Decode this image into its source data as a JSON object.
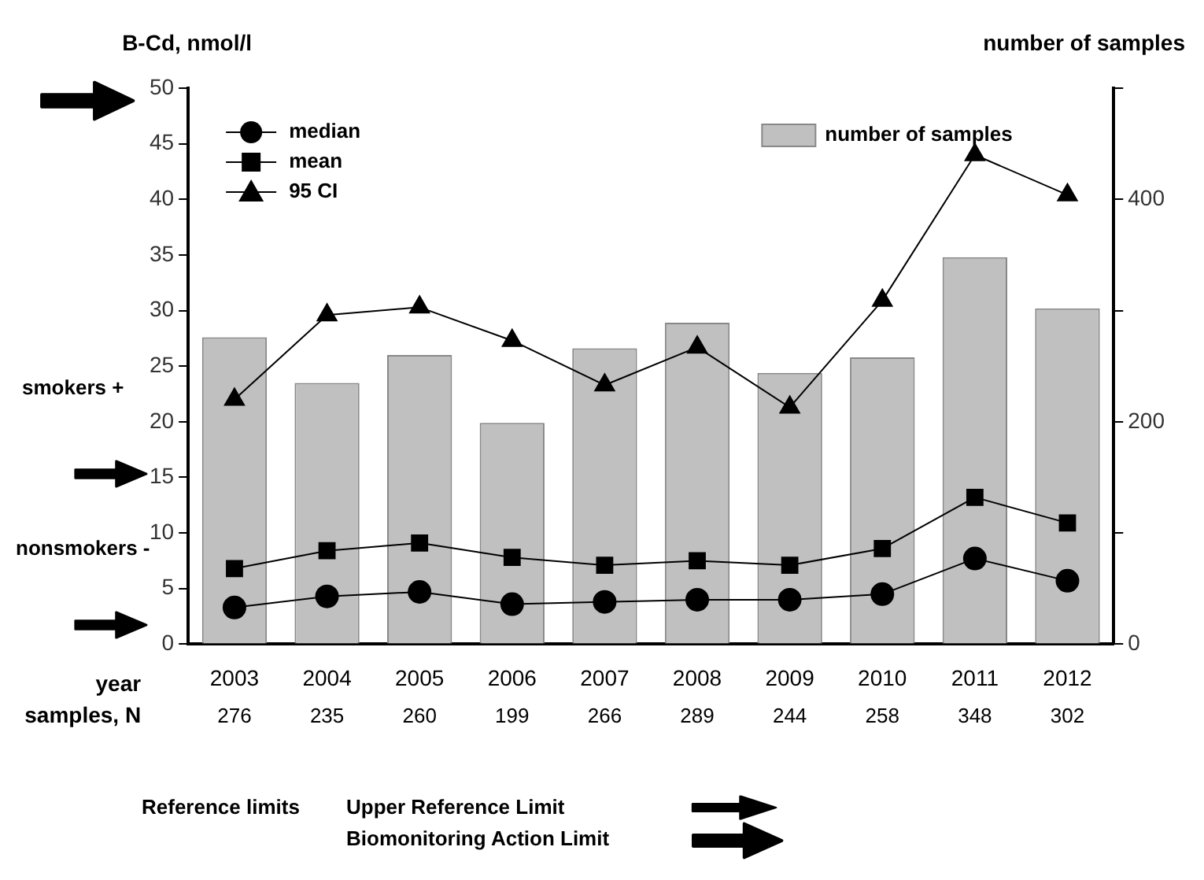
{
  "chart_data": {
    "type": "line",
    "ylabel": "B-Cd, nmol/l",
    "y2label": "number of samples",
    "xlabel": "year",
    "categories": [
      "2003",
      "2004",
      "2005",
      "2006",
      "2007",
      "2008",
      "2009",
      "2010",
      "2011",
      "2012"
    ],
    "series": [
      {
        "name": "number of samples",
        "type": "bar",
        "axis": "y2",
        "color": "#c0c0c0",
        "values": [
          276,
          235,
          260,
          199,
          266,
          289,
          244,
          258,
          348,
          302
        ],
        "data_labels": true
      },
      {
        "name": "median",
        "marker": "circle",
        "color": "#000000",
        "values": [
          3.3,
          4.3,
          4.7,
          3.6,
          3.8,
          4.0,
          4.0,
          4.5,
          7.7,
          5.7
        ]
      },
      {
        "name": "mean",
        "marker": "square",
        "color": "#000000",
        "values": [
          6.8,
          8.4,
          9.1,
          7.8,
          7.1,
          7.5,
          7.1,
          8.6,
          13.2,
          10.9
        ]
      },
      {
        "name": "95 CI",
        "marker": "triangle",
        "color": "#000000",
        "values": [
          22.0,
          29.6,
          30.3,
          27.3,
          23.3,
          26.7,
          21.3,
          30.9,
          44.0,
          40.4
        ]
      }
    ],
    "ylim": [
      0,
      50
    ],
    "yticks": [
      0,
      5,
      10,
      15,
      20,
      25,
      30,
      35,
      40,
      45,
      50
    ],
    "y2lim": [
      0,
      500
    ],
    "y2ticks": [
      0,
      {
        "value": 100,
        "label": null
      },
      200,
      {
        "value": 300,
        "label": null
      },
      400,
      {
        "value": 500,
        "label": null
      }
    ],
    "grid": false,
    "legend": "top left",
    "annotations": [
      "samples, N",
      "smokers +",
      "nonsmokers -",
      "Reference limits",
      "Upper Reference Limit",
      "Biomonitoring Action Limit"
    ]
  }
}
